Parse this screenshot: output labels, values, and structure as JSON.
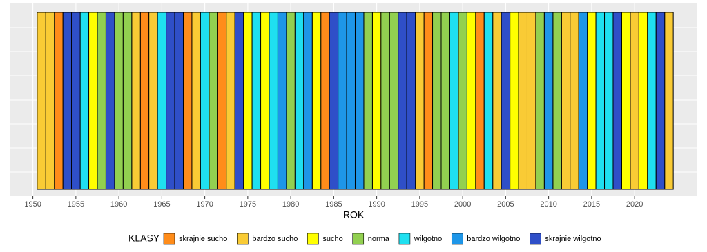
{
  "chart_data": {
    "type": "tile",
    "x_label": "ROK",
    "legend_title": "KLASY",
    "xlim": [
      1947.3,
      2027.3
    ],
    "xticks": [
      1950,
      1955,
      1960,
      1965,
      1970,
      1975,
      1980,
      1985,
      1990,
      1995,
      2000,
      2005,
      2010,
      2015,
      2020
    ],
    "grid": true,
    "legend_position": "bottom",
    "series": [
      {
        "name": "skrajnie sucho",
        "color": "#ff8c1a",
        "x": [
          1953,
          1963,
          1968,
          1972,
          1984,
          1996,
          2002
        ]
      },
      {
        "name": "bardzo sucho",
        "color": "#f9cb35",
        "x": [
          1951,
          1952,
          1962,
          1964,
          1969,
          1973,
          1995,
          2004,
          2007,
          2008,
          2012,
          2013,
          2020,
          2024
        ]
      },
      {
        "name": "sucho",
        "color": "#ffff00",
        "x": [
          1957,
          1975,
          1977,
          1983,
          1990,
          2001,
          2006,
          2015,
          2019,
          2021
        ]
      },
      {
        "name": "norma",
        "color": "#92d050",
        "x": [
          1958,
          1960,
          1961,
          1971,
          1980,
          1989,
          1991,
          1992,
          1997,
          1998,
          2000,
          2009,
          2011
        ]
      },
      {
        "name": "wilgotno",
        "color": "#1fe0f0",
        "x": [
          1956,
          1965,
          1970,
          1976,
          1978,
          1981,
          1999,
          2003,
          2016,
          2017,
          2022
        ]
      },
      {
        "name": "bardzo wilgotno",
        "color": "#1e96e8",
        "x": [
          1979,
          1982,
          1986,
          1987,
          1988,
          2010,
          2014
        ]
      },
      {
        "name": "skrajnie wilgotno",
        "color": "#2f4fc8",
        "x": [
          1954,
          1955,
          1959,
          1966,
          1967,
          1974,
          1985,
          1993,
          1994,
          2005,
          2018,
          2023
        ]
      }
    ]
  }
}
